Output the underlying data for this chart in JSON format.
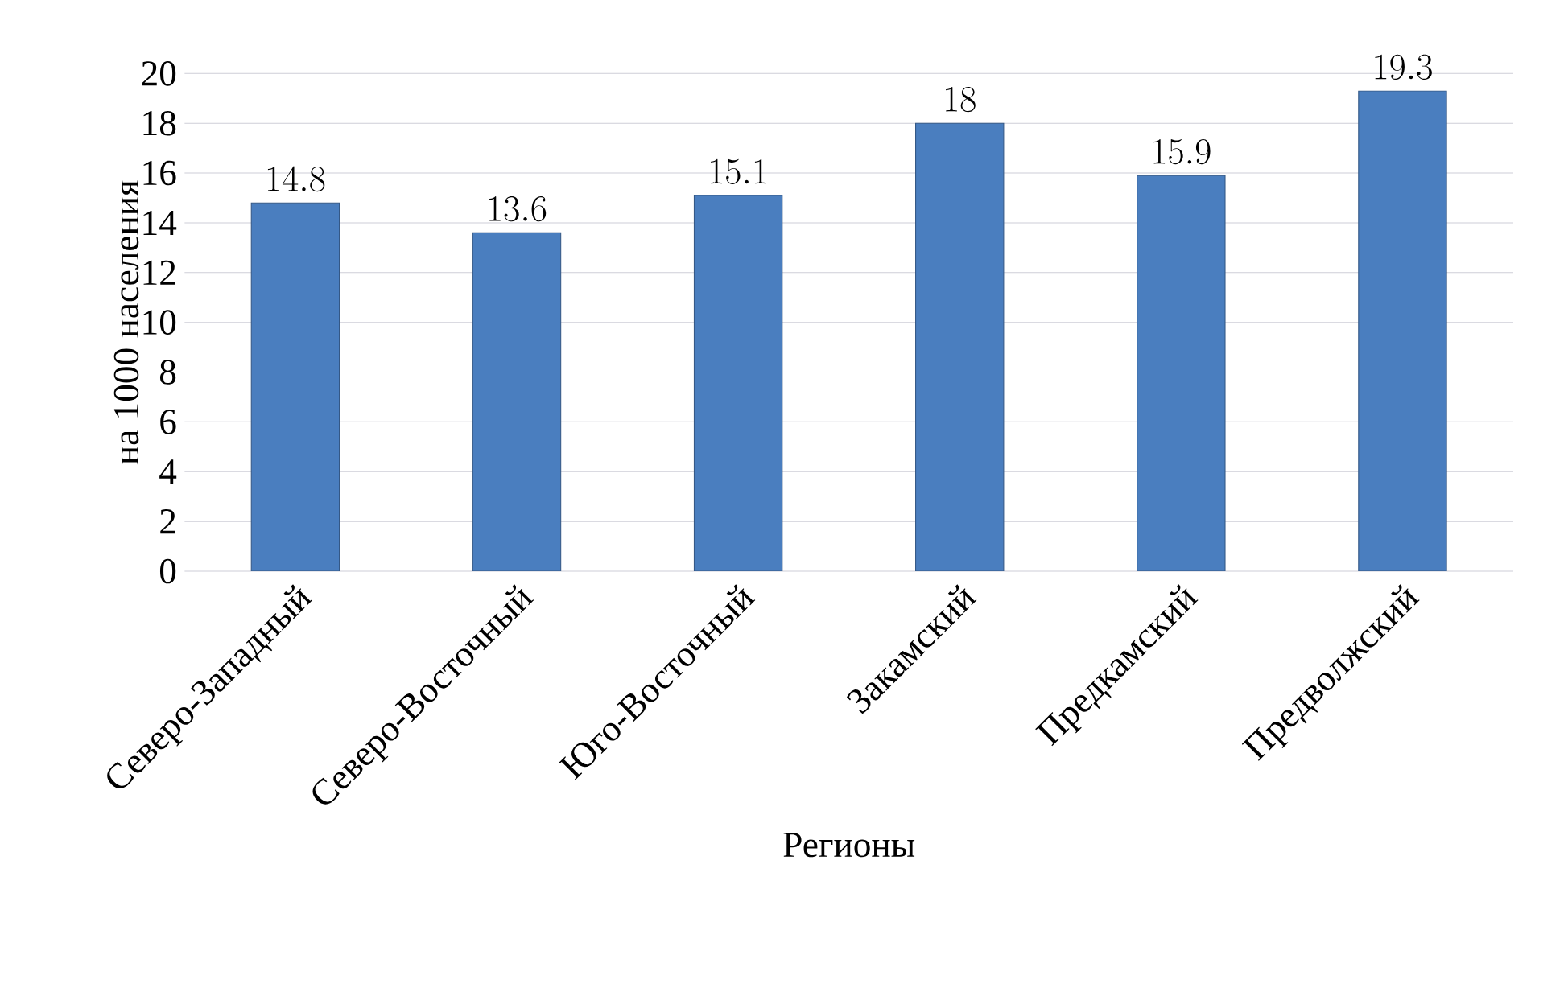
{
  "chart_data": {
    "type": "bar",
    "xlabel": "Регионы",
    "ylabel": "на 1000 населения",
    "categories": [
      "Северо-Западный",
      "Северо-Восточный",
      "Юго-Восточный",
      "Закамский",
      "Предкамский",
      "Предволжский"
    ],
    "values": [
      14.8,
      13.6,
      15.1,
      18,
      15.9,
      19.3
    ],
    "color": "#4a7ebf",
    "ylim": [
      0,
      20
    ],
    "yticks": [
      0,
      2,
      4,
      6,
      8,
      10,
      12,
      14,
      16,
      18,
      20
    ],
    "grid": "y",
    "data_labels": true
  }
}
